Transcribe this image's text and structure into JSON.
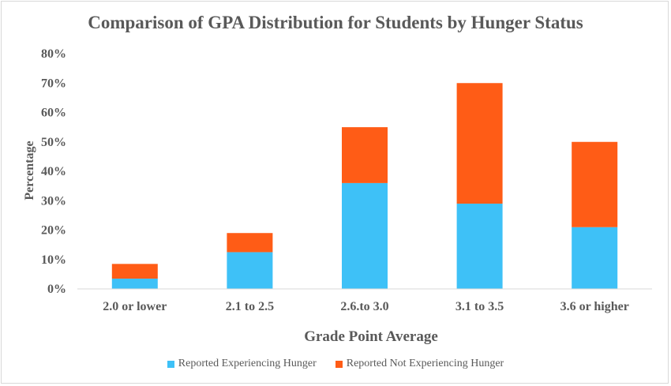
{
  "chart_data": {
    "type": "bar",
    "stacked": true,
    "title": "Comparison of GPA Distribution  for Students by Hunger Status",
    "xlabel": "Grade Point Average",
    "ylabel": "Percentage",
    "categories": [
      "2.0 or lower",
      "2.1 to 2.5",
      "2.6.to 3.0",
      "3.1 to 3.5",
      "3.6 or higher"
    ],
    "ylim": [
      0,
      80
    ],
    "yticks": [
      "0%",
      "10%",
      "20%",
      "30%",
      "40%",
      "50%",
      "60%",
      "70%",
      "80%"
    ],
    "grid": false,
    "legend_position": "bottom",
    "series": [
      {
        "name": "Reported Experiencing Hunger",
        "color": "#3ec1f7",
        "values": [
          3.5,
          12.5,
          36,
          29,
          21
        ]
      },
      {
        "name": "Reported Not Experiencing Hunger",
        "color": "#ff5c16",
        "values": [
          5,
          6.5,
          19,
          41,
          29
        ]
      }
    ]
  }
}
